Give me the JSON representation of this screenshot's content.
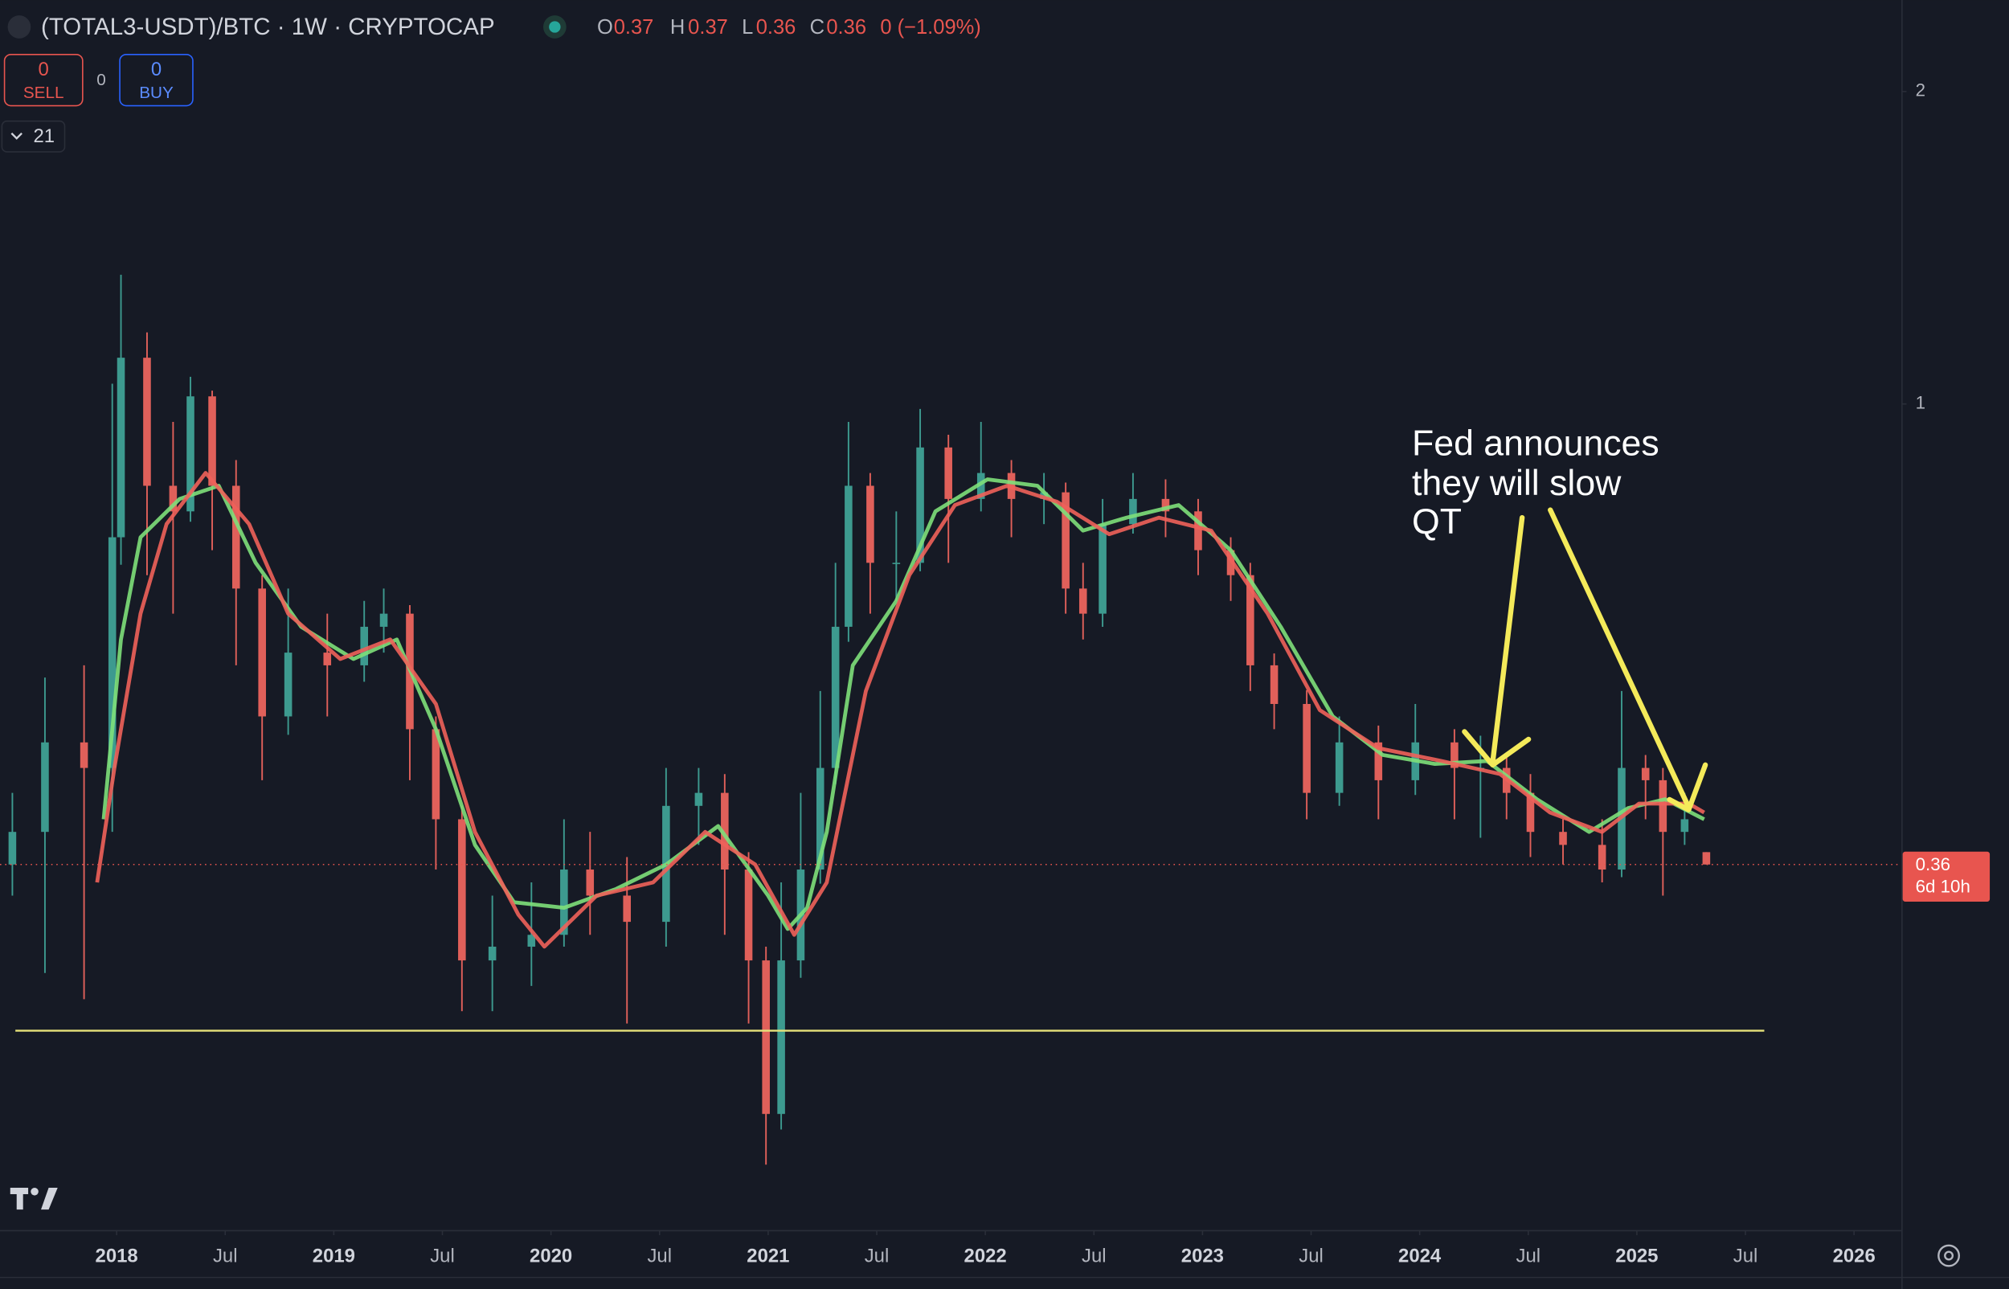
{
  "header": {
    "symbol": "(TOTAL3-USDT)/BTC · 1W · CRYPTOCAP",
    "o_label": "O",
    "o": "0.37",
    "h_label": "H",
    "h": "0.37",
    "l_label": "L",
    "l": "0.36",
    "c_label": "C",
    "c": "0.36",
    "change": "0 (−1.09%)"
  },
  "trade": {
    "sell_count": "0",
    "sell": "SELL",
    "spread": "0",
    "buy_count": "0",
    "buy": "BUY"
  },
  "indicator": "21",
  "chart_data": {
    "type": "candlestick",
    "log_scale": true,
    "up_color": "#3d9a8f",
    "down_color": "#e0605a",
    "x": [
      2017.52,
      2017.67,
      2017.85,
      2017.98,
      2018.02,
      2018.14,
      2018.26,
      2018.34,
      2018.44,
      2018.55,
      2018.67,
      2018.79,
      2018.97,
      2019.14,
      2019.23,
      2019.35,
      2019.47,
      2019.59,
      2019.73,
      2019.91,
      2020.06,
      2020.18,
      2020.35,
      2020.53,
      2020.68,
      2020.8,
      2020.91,
      2020.99,
      2021.06,
      2021.15,
      2021.24,
      2021.31,
      2021.37,
      2021.47,
      2021.59,
      2021.7,
      2021.83,
      2021.98,
      2022.12,
      2022.27,
      2022.37,
      2022.45,
      2022.54,
      2022.68,
      2022.83,
      2022.98,
      2023.13,
      2023.22,
      2023.33,
      2023.48,
      2023.63,
      2023.81,
      2023.98,
      2024.16,
      2024.28,
      2024.4,
      2024.51,
      2024.66,
      2024.84,
      2024.93,
      2025.04,
      2025.12,
      2025.22,
      2025.32
    ],
    "open": [
      0.36,
      0.387,
      0.472,
      0.446,
      0.744,
      1.108,
      0.834,
      0.788,
      1.017,
      0.834,
      0.664,
      0.5,
      0.576,
      0.56,
      0.61,
      0.628,
      0.486,
      0.398,
      0.291,
      0.3,
      0.308,
      0.356,
      0.336,
      0.317,
      0.41,
      0.422,
      0.356,
      0.291,
      0.207,
      0.291,
      0.356,
      0.446,
      0.61,
      0.834,
      0.703,
      0.703,
      0.908,
      0.81,
      0.858,
      0.81,
      0.822,
      0.664,
      0.628,
      0.766,
      0.81,
      0.788,
      0.723,
      0.684,
      0.56,
      0.514,
      0.422,
      0.472,
      0.434,
      0.472,
      0.446,
      0.446,
      0.422,
      0.387,
      0.376,
      0.356,
      0.446,
      0.434,
      0.387,
      0.37
    ],
    "high": [
      0.422,
      0.545,
      0.56,
      1.046,
      1.332,
      1.172,
      0.961,
      1.062,
      1.03,
      0.883,
      0.684,
      0.664,
      0.628,
      0.646,
      0.664,
      0.64,
      0.5,
      0.41,
      0.336,
      0.346,
      0.398,
      0.387,
      0.366,
      0.446,
      0.446,
      0.44,
      0.37,
      0.3,
      0.346,
      0.422,
      0.529,
      0.703,
      0.961,
      0.858,
      0.788,
      0.989,
      0.934,
      0.961,
      0.883,
      0.858,
      0.84,
      0.703,
      0.81,
      0.858,
      0.846,
      0.81,
      0.744,
      0.703,
      0.575,
      0.53,
      0.5,
      0.49,
      0.514,
      0.486,
      0.479,
      0.459,
      0.44,
      0.398,
      0.398,
      0.529,
      0.459,
      0.446,
      0.422,
      0.37
    ],
    "low": [
      0.336,
      0.283,
      0.267,
      0.387,
      0.7,
      0.684,
      0.628,
      0.77,
      0.723,
      0.56,
      0.434,
      0.48,
      0.5,
      0.54,
      0.576,
      0.434,
      0.356,
      0.26,
      0.26,
      0.275,
      0.3,
      0.308,
      0.253,
      0.3,
      0.376,
      0.308,
      0.253,
      0.185,
      0.2,
      0.28,
      0.345,
      0.43,
      0.59,
      0.628,
      0.646,
      0.69,
      0.703,
      0.788,
      0.744,
      0.766,
      0.628,
      0.593,
      0.61,
      0.75,
      0.744,
      0.684,
      0.646,
      0.529,
      0.486,
      0.398,
      0.41,
      0.398,
      0.42,
      0.398,
      0.382,
      0.398,
      0.366,
      0.36,
      0.346,
      0.35,
      0.398,
      0.336,
      0.376,
      0.36
    ],
    "close": [
      0.387,
      0.472,
      0.446,
      0.744,
      1.108,
      0.834,
      0.788,
      1.017,
      0.834,
      0.664,
      0.5,
      0.576,
      0.56,
      0.61,
      0.628,
      0.486,
      0.398,
      0.291,
      0.3,
      0.308,
      0.356,
      0.336,
      0.317,
      0.41,
      0.422,
      0.356,
      0.291,
      0.207,
      0.291,
      0.356,
      0.446,
      0.61,
      0.834,
      0.703,
      0.703,
      0.908,
      0.81,
      0.858,
      0.81,
      0.822,
      0.664,
      0.628,
      0.766,
      0.81,
      0.788,
      0.723,
      0.684,
      0.56,
      0.514,
      0.422,
      0.472,
      0.434,
      0.472,
      0.446,
      0.446,
      0.422,
      0.387,
      0.376,
      0.356,
      0.446,
      0.434,
      0.387,
      0.398,
      0.36
    ],
    "overlays": [
      {
        "color": "#7ee07a",
        "x": [
          2017.94,
          2018.02,
          2018.11,
          2018.29,
          2018.47,
          2018.64,
          2018.85,
          2019.09,
          2019.29,
          2019.47,
          2019.65,
          2019.83,
          2020.06,
          2020.3,
          2020.53,
          2020.77,
          2021.0,
          2021.09,
          2021.18,
          2021.27,
          2021.39,
          2021.59,
          2021.77,
          2022.01,
          2022.24,
          2022.45,
          2022.65,
          2022.89,
          2023.13,
          2023.36,
          2023.6,
          2023.83,
          2024.07,
          2024.31,
          2024.54,
          2024.78,
          2024.96,
          2025.13,
          2025.31
        ],
        "values": [
          0.398,
          0.593,
          0.744,
          0.81,
          0.834,
          0.703,
          0.61,
          0.568,
          0.593,
          0.486,
          0.376,
          0.331,
          0.327,
          0.341,
          0.36,
          0.392,
          0.336,
          0.312,
          0.327,
          0.387,
          0.56,
          0.646,
          0.788,
          0.846,
          0.834,
          0.755,
          0.777,
          0.799,
          0.723,
          0.61,
          0.5,
          0.459,
          0.45,
          0.453,
          0.416,
          0.387,
          0.408,
          0.416,
          0.398
        ]
      },
      {
        "color": "#f0625a",
        "x": [
          2017.91,
          2017.99,
          2018.11,
          2018.23,
          2018.41,
          2018.61,
          2018.79,
          2019.03,
          2019.26,
          2019.47,
          2019.65,
          2019.85,
          2019.97,
          2020.21,
          2020.47,
          2020.71,
          2020.94,
          2021.12,
          2021.27,
          2021.45,
          2021.65,
          2021.86,
          2022.1,
          2022.33,
          2022.57,
          2022.8,
          2023.04,
          2023.3,
          2023.54,
          2023.81,
          2024.1,
          2024.37,
          2024.6,
          2024.84,
          2025.01,
          2025.24,
          2025.31
        ],
        "values": [
          0.346,
          0.446,
          0.628,
          0.766,
          0.858,
          0.766,
          0.628,
          0.568,
          0.593,
          0.514,
          0.387,
          0.322,
          0.3,
          0.336,
          0.346,
          0.387,
          0.36,
          0.308,
          0.346,
          0.529,
          0.684,
          0.799,
          0.834,
          0.805,
          0.749,
          0.777,
          0.755,
          0.628,
          0.507,
          0.466,
          0.453,
          0.44,
          0.404,
          0.387,
          0.412,
          0.412,
          0.404
        ]
      }
    ],
    "hline": {
      "value": 0.249,
      "color": "#e6e27a"
    },
    "price_label": "0.36",
    "countdown": "6d 10h",
    "price_color": "#e8554f",
    "annotation": [
      "Fed announces",
      "they will slow",
      "QT"
    ],
    "xlim": [
      2017.463,
      2026.218
    ],
    "ylim": [
      0.16,
      2.45
    ],
    "yticks": [
      1,
      2
    ],
    "xticks": [
      2018,
      {
        "value": 2018.5,
        "label": "Jul"
      },
      2019,
      {
        "value": 2019.5,
        "label": "Jul"
      },
      2020,
      {
        "value": 2020.5,
        "label": "Jul"
      },
      2021,
      {
        "value": 2021.5,
        "label": "Jul"
      },
      2022,
      {
        "value": 2022.5,
        "label": "Jul"
      },
      2023,
      {
        "value": 2023.5,
        "label": "Jul"
      },
      2024,
      {
        "value": 2024.5,
        "label": "Jul"
      },
      2025,
      {
        "value": 2025.5,
        "label": "Jul"
      },
      2026
    ]
  }
}
